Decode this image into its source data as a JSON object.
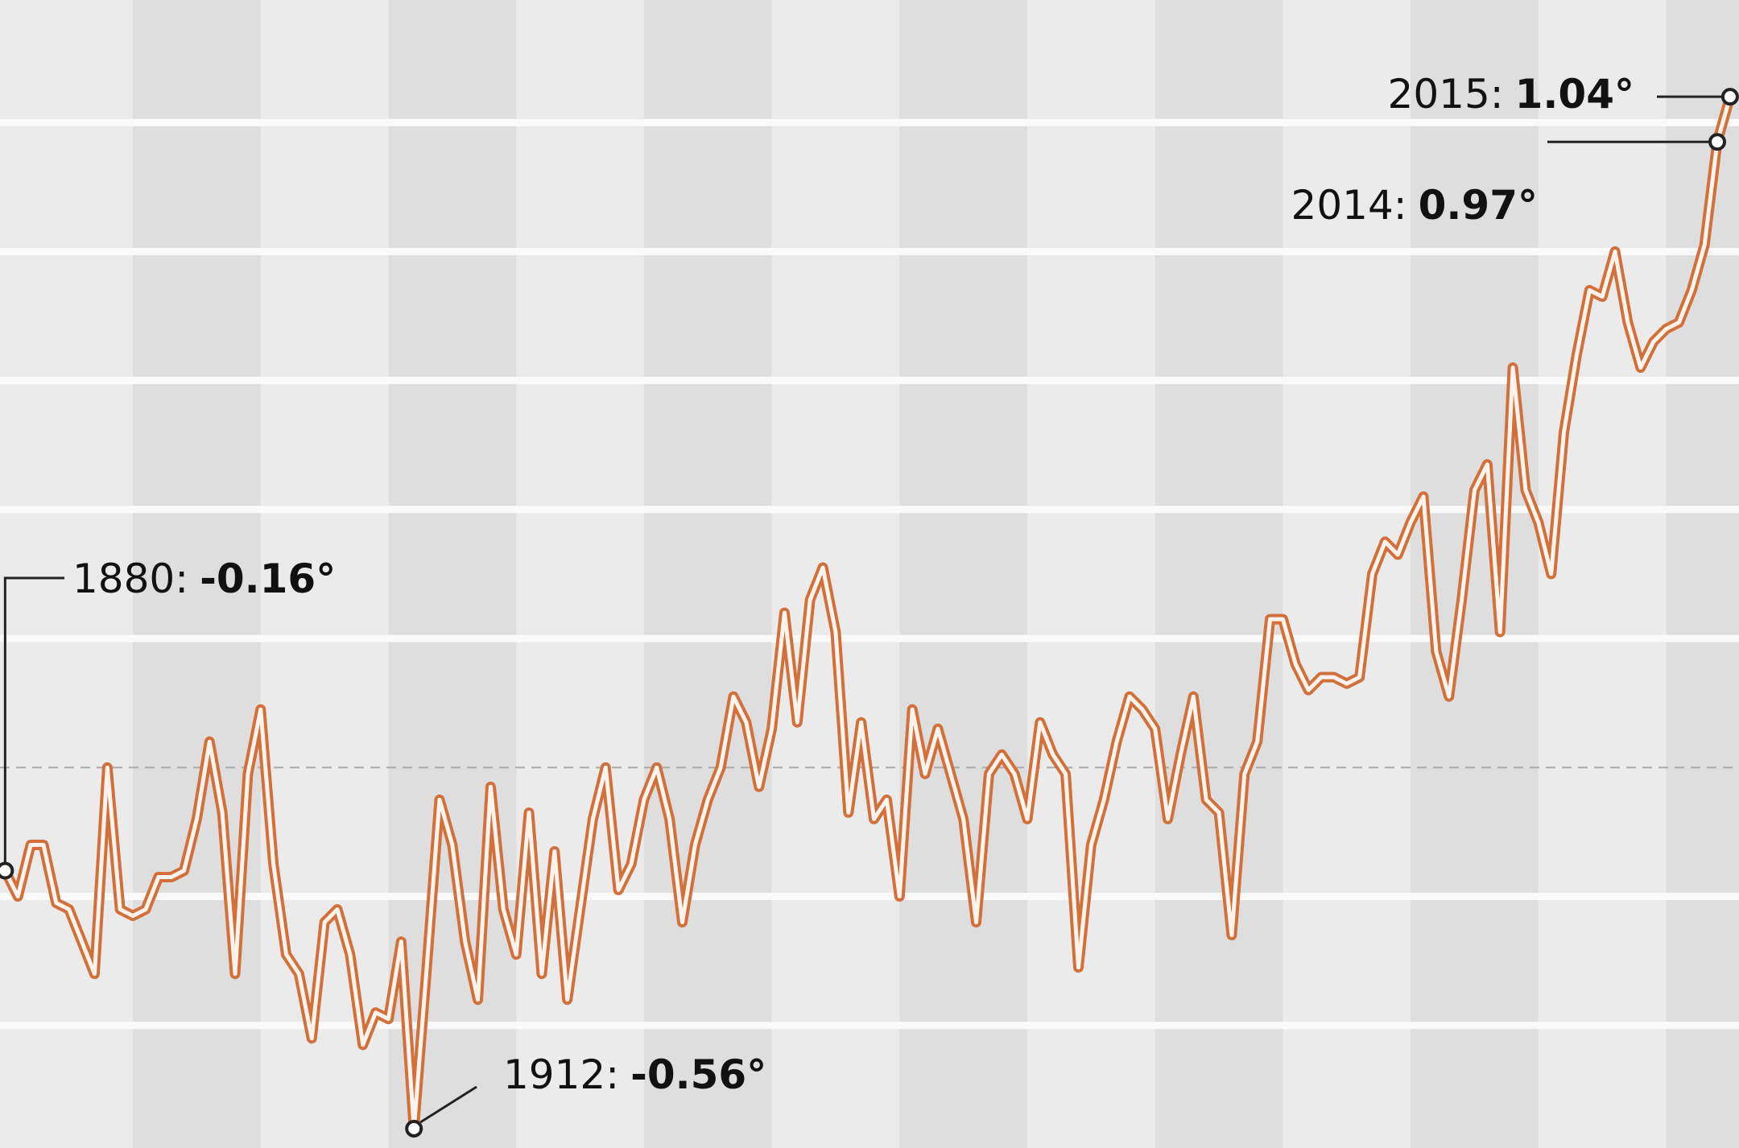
{
  "chart_data": {
    "type": "line",
    "x": [
      1880,
      1881,
      1882,
      1883,
      1884,
      1885,
      1886,
      1887,
      1888,
      1889,
      1890,
      1891,
      1892,
      1893,
      1894,
      1895,
      1896,
      1897,
      1898,
      1899,
      1900,
      1901,
      1902,
      1903,
      1904,
      1905,
      1906,
      1907,
      1908,
      1909,
      1910,
      1911,
      1912,
      1913,
      1914,
      1915,
      1916,
      1917,
      1918,
      1919,
      1920,
      1921,
      1922,
      1923,
      1924,
      1925,
      1926,
      1927,
      1928,
      1929,
      1930,
      1931,
      1932,
      1933,
      1934,
      1935,
      1936,
      1937,
      1938,
      1939,
      1940,
      1941,
      1942,
      1943,
      1944,
      1945,
      1946,
      1947,
      1948,
      1949,
      1950,
      1951,
      1952,
      1953,
      1954,
      1955,
      1956,
      1957,
      1958,
      1959,
      1960,
      1961,
      1962,
      1963,
      1964,
      1965,
      1966,
      1967,
      1968,
      1969,
      1970,
      1971,
      1972,
      1973,
      1974,
      1975,
      1976,
      1977,
      1978,
      1979,
      1980,
      1981,
      1982,
      1983,
      1984,
      1985,
      1986,
      1987,
      1988,
      1989,
      1990,
      1991,
      1992,
      1993,
      1994,
      1995,
      1996,
      1997,
      1998,
      1999,
      2000,
      2001,
      2002,
      2003,
      2004,
      2005,
      2006,
      2007,
      2008,
      2009,
      2010,
      2011,
      2012,
      2013,
      2014,
      2015
    ],
    "series": [
      {
        "color": "#d2703c",
        "values": [
          -0.16,
          -0.2,
          -0.12,
          -0.12,
          -0.21,
          -0.22,
          -0.27,
          -0.32,
          0.0,
          -0.22,
          -0.23,
          -0.22,
          -0.17,
          -0.17,
          -0.16,
          -0.08,
          0.04,
          -0.07,
          -0.32,
          -0.01,
          0.09,
          -0.15,
          -0.29,
          -0.32,
          -0.42,
          -0.24,
          -0.22,
          -0.29,
          -0.43,
          -0.38,
          -0.39,
          -0.27,
          -0.56,
          -0.31,
          -0.05,
          -0.12,
          -0.27,
          -0.36,
          -0.03,
          -0.22,
          -0.29,
          -0.07,
          -0.32,
          -0.13,
          -0.36,
          -0.22,
          -0.08,
          0.0,
          -0.19,
          -0.15,
          -0.05,
          0.0,
          -0.08,
          -0.24,
          -0.12,
          -0.05,
          0.0,
          0.11,
          0.07,
          -0.03,
          0.06,
          0.24,
          0.07,
          0.26,
          0.31,
          0.21,
          -0.07,
          0.07,
          -0.08,
          -0.05,
          -0.2,
          0.09,
          -0.01,
          0.06,
          -0.01,
          -0.08,
          -0.24,
          -0.01,
          0.02,
          -0.01,
          -0.08,
          0.07,
          0.02,
          -0.01,
          -0.31,
          -0.12,
          -0.05,
          0.04,
          0.11,
          0.09,
          0.06,
          -0.08,
          0.02,
          0.11,
          -0.05,
          -0.07,
          -0.26,
          -0.01,
          0.04,
          0.23,
          0.23,
          0.16,
          0.12,
          0.14,
          0.14,
          0.13,
          0.14,
          0.3,
          0.35,
          0.33,
          0.38,
          0.42,
          0.18,
          0.11,
          0.26,
          0.43,
          0.47,
          0.21,
          0.62,
          0.43,
          0.38,
          0.3,
          0.52,
          0.64,
          0.74,
          0.73,
          0.8,
          0.69,
          0.62,
          0.66,
          0.68,
          0.69,
          0.74,
          0.81,
          0.97,
          1.04
        ]
      }
    ],
    "annotations": [
      {
        "x": 1880,
        "text": "1880:",
        "label": "-0.16°"
      },
      {
        "x": 1912,
        "text": "1912:",
        "label": "-0.56°"
      },
      {
        "x": 2014,
        "text": "2014:",
        "label": "0.97°"
      },
      {
        "x": 2015,
        "text": "2015:",
        "label": "1.04°"
      }
    ],
    "xlim": [
      1879.6,
      2015.7
    ],
    "xticks": [
      1890,
      1900,
      1910,
      1920,
      1930,
      1940,
      1950,
      1960,
      1970,
      1980,
      1990,
      2000,
      2010
    ],
    "ylim": [
      -0.59,
      1.19
    ],
    "yticks": [
      -0.4,
      -0.2,
      0,
      0.2,
      0.4,
      0.6,
      0.8,
      1.0
    ],
    "grid": true
  }
}
